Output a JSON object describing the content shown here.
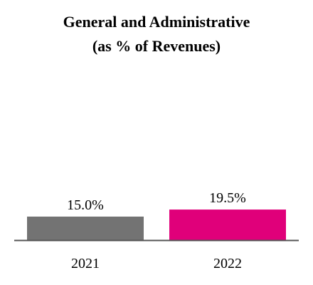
{
  "chart_data": {
    "type": "bar",
    "title": "General and Administrative",
    "subtitle": "(as % of Revenues)",
    "categories": [
      "2021",
      "2022"
    ],
    "values": [
      15.0,
      19.5
    ],
    "data_labels": [
      "15.0%",
      "19.5%"
    ],
    "colors": [
      "#737373",
      "#e0007a"
    ],
    "axis_color": "#555555",
    "unit": "%",
    "grid": false,
    "legend": "none"
  }
}
